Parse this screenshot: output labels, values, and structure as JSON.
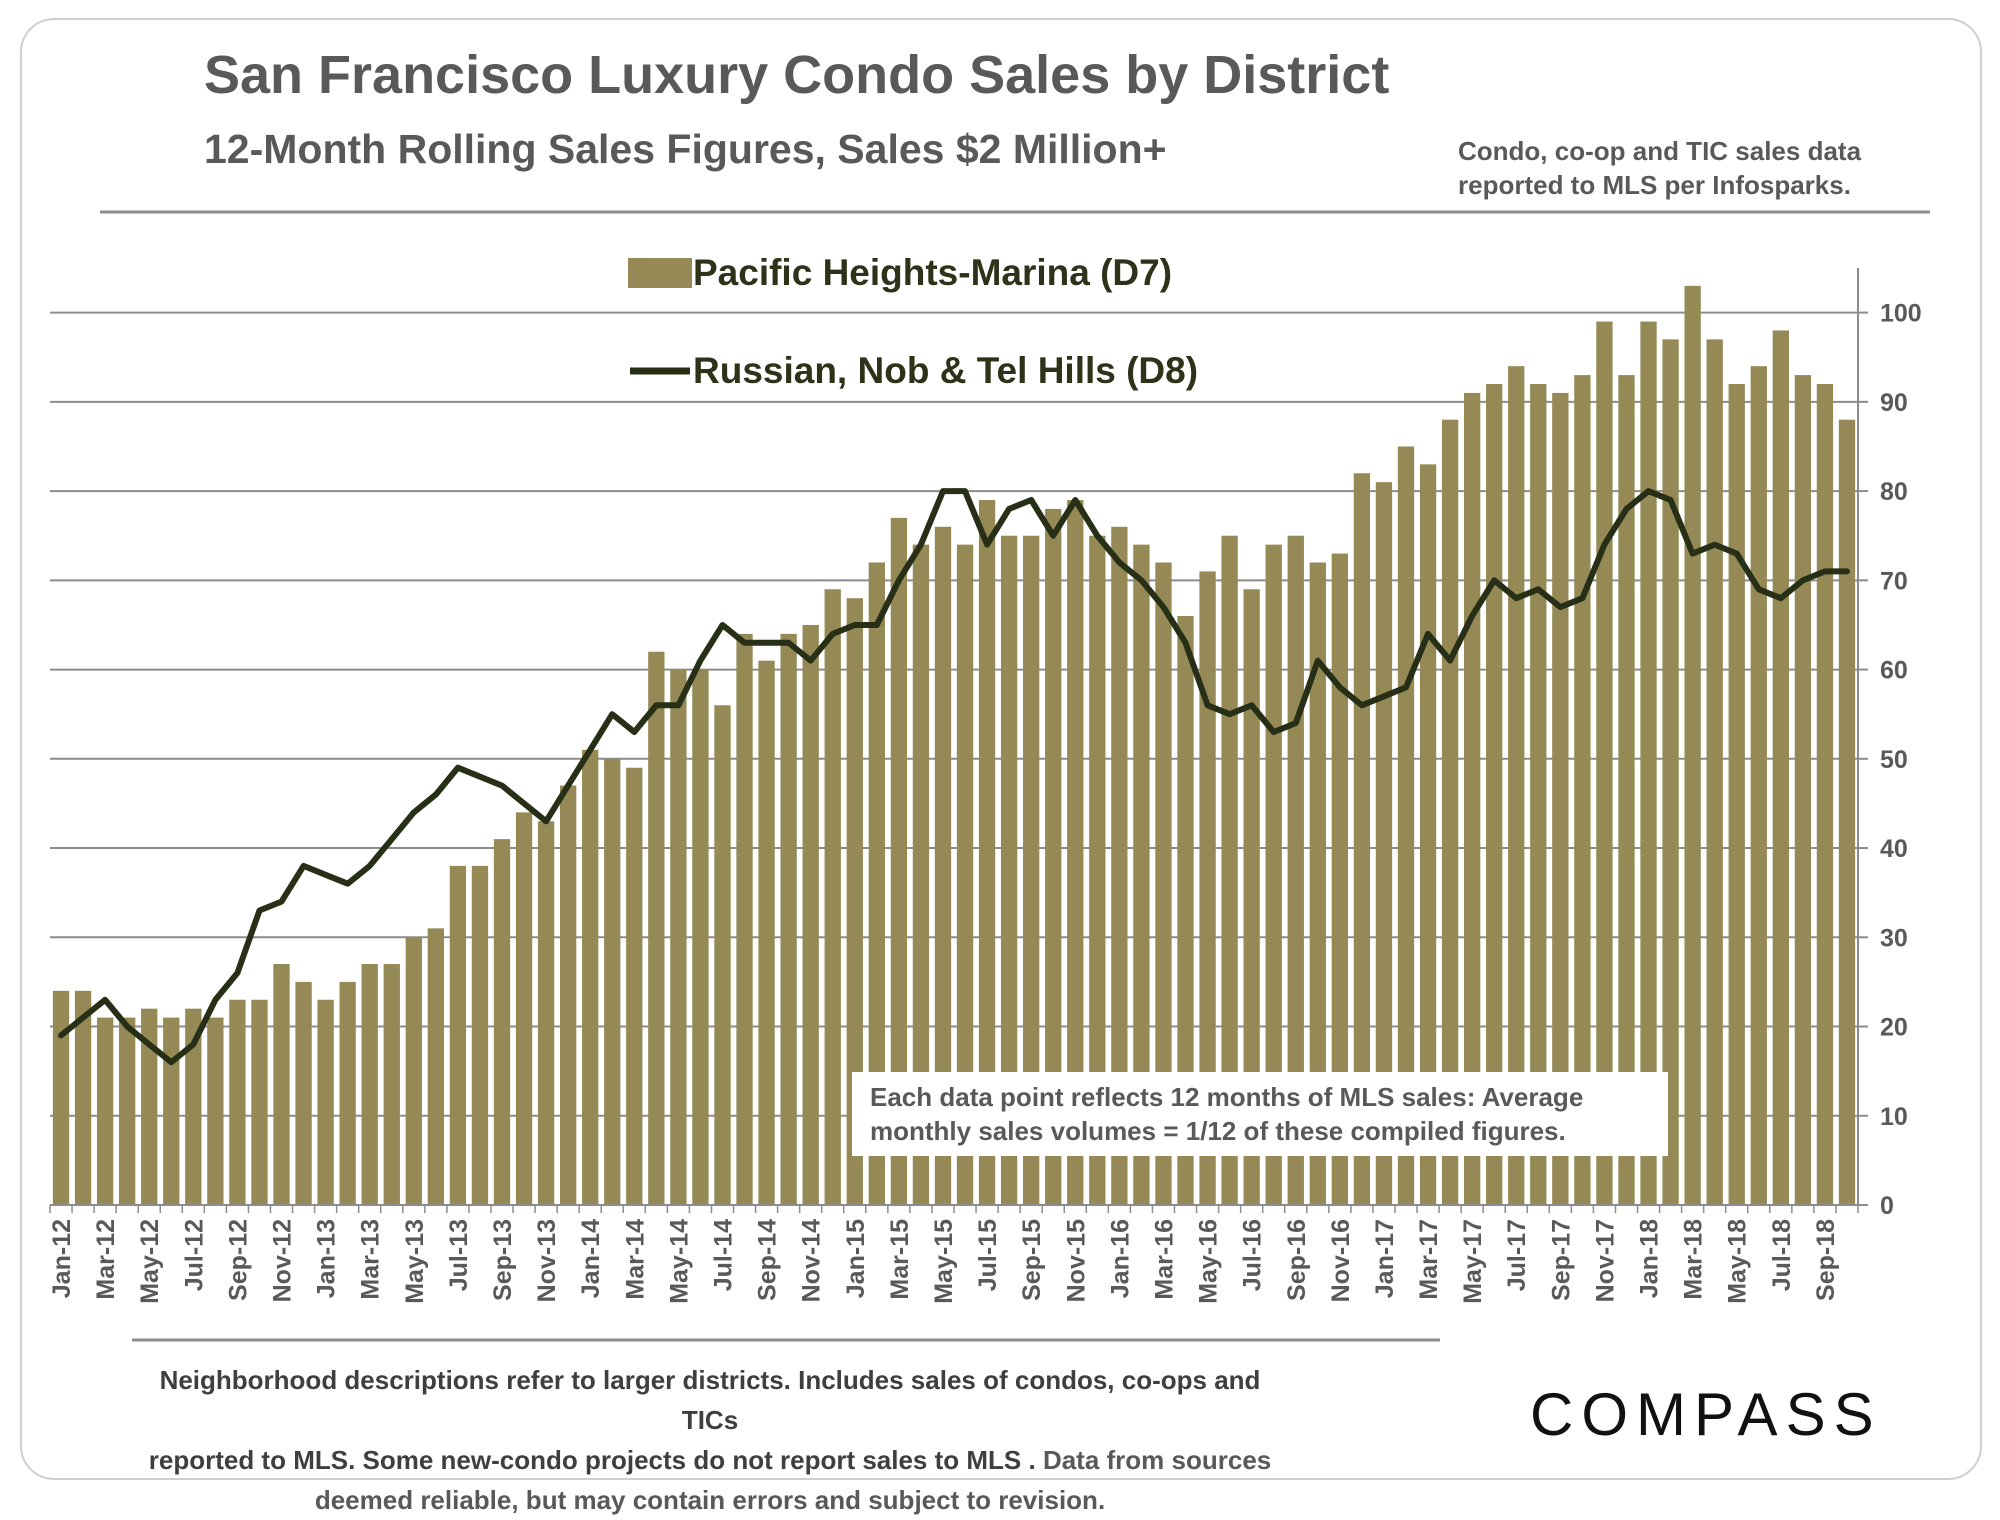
{
  "header": {
    "title": "San Francisco Luxury Condo Sales by District",
    "subtitle": "12-Month Rolling Sales Figures, Sales $2 Million+",
    "source_line1": "Condo, co-op and TIC sales data",
    "source_line2": "reported to MLS per Infosparks."
  },
  "annotation": {
    "line1": "Each data point reflects 12 months of MLS sales:  Average",
    "line2": "monthly sales volumes = 1/12 of these compiled figures."
  },
  "footer": {
    "line1": "Neighborhood descriptions refer to larger districts. Includes sales of condos, co-ops and TICs",
    "line2a": "reported to MLS. Some new-condo projects do not report sales to MLS . ",
    "line2b": "Data from sources",
    "line3": "deemed reliable, but may contain errors and subject to revision."
  },
  "logo": {
    "text": "COMPASS"
  },
  "colors": {
    "bar": "#958a55",
    "line": "#273017",
    "grid": "#8c8c8c",
    "text": "#595959"
  },
  "chart_data": {
    "type": "bar",
    "title": "San Francisco Luxury Condo Sales by District",
    "ylim": [
      0,
      105
    ],
    "yticks": [
      0,
      10,
      20,
      30,
      40,
      50,
      60,
      70,
      80,
      90,
      100
    ],
    "ytick_labels": [
      "0",
      "10",
      "20",
      "30",
      "40",
      "50",
      "60",
      "70",
      "80",
      "90",
      "100"
    ],
    "y_axis_side": "right",
    "grid": true,
    "legend_position": "top-center",
    "categories": [
      "Jan-12",
      "Feb-12",
      "Mar-12",
      "Apr-12",
      "May-12",
      "Jun-12",
      "Jul-12",
      "Aug-12",
      "Sep-12",
      "Oct-12",
      "Nov-12",
      "Dec-12",
      "Jan-13",
      "Feb-13",
      "Mar-13",
      "Apr-13",
      "May-13",
      "Jun-13",
      "Jul-13",
      "Aug-13",
      "Sep-13",
      "Oct-13",
      "Nov-13",
      "Dec-13",
      "Jan-14",
      "Feb-14",
      "Mar-14",
      "Apr-14",
      "May-14",
      "Jun-14",
      "Jul-14",
      "Aug-14",
      "Sep-14",
      "Oct-14",
      "Nov-14",
      "Dec-14",
      "Jan-15",
      "Feb-15",
      "Mar-15",
      "Apr-15",
      "May-15",
      "Jun-15",
      "Jul-15",
      "Aug-15",
      "Sep-15",
      "Oct-15",
      "Nov-15",
      "Dec-15",
      "Jan-16",
      "Feb-16",
      "Mar-16",
      "Apr-16",
      "May-16",
      "Jun-16",
      "Jul-16",
      "Aug-16",
      "Sep-16",
      "Oct-16",
      "Nov-16",
      "Dec-16",
      "Jan-17",
      "Feb-17",
      "Mar-17",
      "Apr-17",
      "May-17",
      "Jun-17",
      "Jul-17",
      "Aug-17",
      "Sep-17",
      "Oct-17",
      "Nov-17",
      "Dec-17",
      "Jan-18",
      "Feb-18",
      "Mar-18",
      "Apr-18",
      "May-18",
      "Jun-18",
      "Jul-18",
      "Aug-18",
      "Sep-18",
      "Oct-18"
    ],
    "x_tick_labels": [
      "Jan-12",
      "Mar-12",
      "May-12",
      "Jul-12",
      "Sep-12",
      "Nov-12",
      "Jan-13",
      "Mar-13",
      "May-13",
      "Jul-13",
      "Sep-13",
      "Nov-13",
      "Jan-14",
      "Mar-14",
      "May-14",
      "Jul-14",
      "Sep-14",
      "Nov-14",
      "Jan-15",
      "Mar-15",
      "May-15",
      "Jul-15",
      "Sep-15",
      "Nov-15",
      "Jan-16",
      "Mar-16",
      "May-16",
      "Jul-16",
      "Sep-16",
      "Nov-16",
      "Jan-17",
      "Mar-17",
      "May-17",
      "Jul-17",
      "Sep-17",
      "Nov-17",
      "Jan-18",
      "Mar-18",
      "May-18",
      "Jul-18",
      "Sep-18"
    ],
    "series": [
      {
        "name": "Pacific Heights-Marina (D7)",
        "kind": "bar",
        "values": [
          24,
          24,
          21,
          21,
          22,
          21,
          22,
          21,
          23,
          23,
          27,
          25,
          23,
          25,
          27,
          27,
          30,
          31,
          38,
          38,
          41,
          44,
          43,
          47,
          51,
          50,
          49,
          62,
          60,
          60,
          56,
          64,
          61,
          64,
          65,
          69,
          68,
          72,
          77,
          74,
          76,
          74,
          79,
          75,
          75,
          78,
          79,
          75,
          76,
          74,
          72,
          66,
          71,
          75,
          69,
          74,
          75,
          72,
          73,
          82,
          81,
          85,
          83,
          88,
          91,
          92,
          94,
          92,
          91,
          93,
          99,
          93,
          99,
          97,
          103,
          97,
          92,
          94,
          98,
          93,
          92,
          88
        ]
      },
      {
        "name": "Russian, Nob & Tel Hills (D8)",
        "kind": "line",
        "values": [
          19,
          21,
          23,
          20,
          18,
          16,
          18,
          23,
          26,
          33,
          34,
          38,
          37,
          36,
          38,
          41,
          44,
          46,
          49,
          48,
          47,
          45,
          43,
          47,
          51,
          55,
          53,
          56,
          56,
          61,
          65,
          63,
          63,
          63,
          61,
          64,
          65,
          65,
          70,
          74,
          80,
          80,
          74,
          78,
          79,
          75,
          79,
          75,
          72,
          70,
          67,
          63,
          56,
          55,
          56,
          53,
          54,
          61,
          58,
          56,
          57,
          58,
          64,
          61,
          66,
          70,
          68,
          69,
          67,
          68,
          74,
          78,
          80,
          79,
          73,
          74,
          73,
          69,
          68,
          70,
          71,
          71
        ]
      }
    ]
  }
}
